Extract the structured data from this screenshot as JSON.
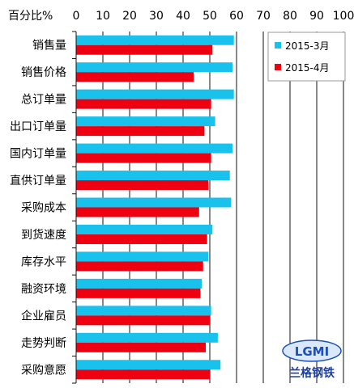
{
  "chart_data": {
    "type": "bar",
    "orientation": "horizontal",
    "axis_unit_label": "百分比%",
    "xlim": [
      0,
      100
    ],
    "x_ticks": [
      "0",
      "10",
      "20",
      "30",
      "40",
      "50",
      "60",
      "70",
      "80",
      "90",
      "100"
    ],
    "categories": [
      "销售量",
      "销售价格",
      "总订单量",
      "出口订单量",
      "国内订单量",
      "直供订单量",
      "采购成本",
      "到货速度",
      "库存水平",
      "融资环境",
      "企业雇员",
      "走势判断",
      "采购意愿"
    ],
    "series": [
      {
        "name": "2015-3月",
        "color": "#18c2ec",
        "values": [
          59,
          58.5,
          59,
          52,
          58.5,
          57.5,
          58,
          51,
          49.5,
          47,
          50.5,
          53,
          54
        ]
      },
      {
        "name": "2015-4月",
        "color": "#ee0010",
        "values": [
          51,
          44,
          50.5,
          48,
          50.5,
          49.5,
          46,
          49,
          47.5,
          46.5,
          50,
          48.5,
          50
        ]
      }
    ],
    "grid": true,
    "legend_position": "top-right"
  },
  "watermark": {
    "logo_text": "LGMI",
    "cn_text": "兰格钢铁"
  }
}
